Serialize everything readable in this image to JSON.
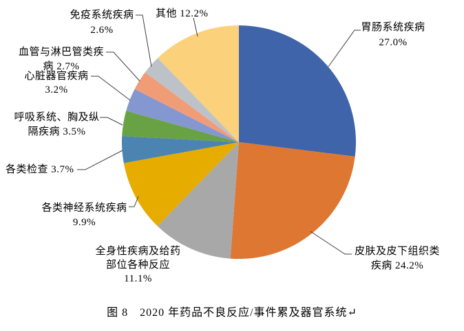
{
  "caption": "图 8　2020 年药品不良反应/事件累及器官系统↵",
  "chart_data": {
    "type": "pie",
    "title": "2020 年药品不良反应/事件累及器官系统",
    "figure_label": "图 8",
    "legend_position": "none",
    "start_angle_deg": 0,
    "direction": "clockwise",
    "units": "%",
    "total_pct": 100.1,
    "slices": [
      {
        "label": "胃肠系统疾病",
        "pct": 27.0,
        "color": "#3F64A9",
        "display": "胃肠系统疾病\n27.0%"
      },
      {
        "label": "皮肤及皮下组织类疾病",
        "pct": 24.2,
        "color": "#DD7732",
        "display": "皮肤及皮下组织类\n疾病 24.2%"
      },
      {
        "label": "全身性疾病及给药部位各种反应",
        "pct": 11.1,
        "color": "#A8A8A8",
        "display": "全身性疾病及给药\n部位各种反应\n11.1%"
      },
      {
        "label": "各类神经系统疾病",
        "pct": 9.9,
        "color": "#E6AC00",
        "display": "各类神经系统疾病\n9.9%"
      },
      {
        "label": "各类检查",
        "pct": 3.7,
        "color": "#4B84B1",
        "display": "各类检查 3.7%"
      },
      {
        "label": "呼吸系统、胸及纵隔疾病",
        "pct": 3.5,
        "color": "#69A244",
        "display": "呼吸系统、胸及纵\n隔疾病 3.5%"
      },
      {
        "label": "心脏器官疾病",
        "pct": 3.2,
        "color": "#8497D1",
        "display": "心脏器官疾病\n3.2%"
      },
      {
        "label": "血管与淋巴管类疾病",
        "pct": 2.7,
        "color": "#F09C77",
        "display": "血管与淋巴管类疾\n病 2.7%"
      },
      {
        "label": "免疫系统疾病",
        "pct": 2.6,
        "color": "#BDC2C9",
        "display": "免疫系统疾病\n2.6%"
      },
      {
        "label": "其他",
        "pct": 12.2,
        "color": "#FBD17B",
        "display": "其他 12.2%"
      }
    ],
    "leader_line_color": "#3F3F3F"
  }
}
